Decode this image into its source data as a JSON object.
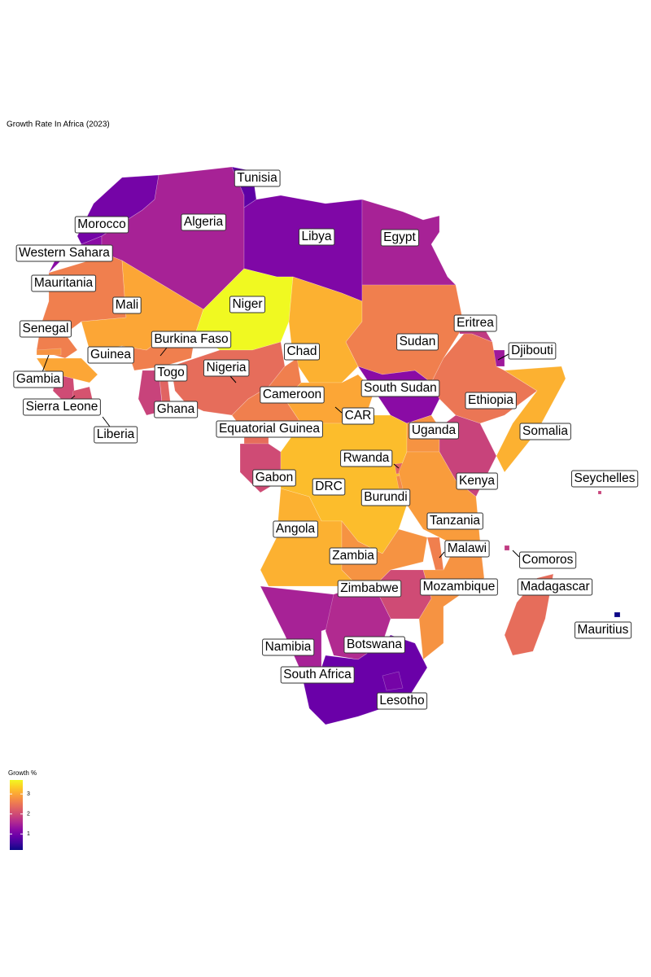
{
  "chart_data": {
    "type": "choropleth",
    "title": "Growth Rate In Africa (2023)",
    "legend_title": "Growth %",
    "scale_lim": [
      0.2,
      3.7
    ],
    "scale_ticks": [
      1,
      2,
      3
    ],
    "countries": [
      {
        "name": "Morocco",
        "growth": 1.0
      },
      {
        "name": "Western Sahara",
        "growth": 1.2
      },
      {
        "name": "Algeria",
        "growth": 1.5
      },
      {
        "name": "Tunisia",
        "growth": 0.8
      },
      {
        "name": "Libya",
        "growth": 1.1
      },
      {
        "name": "Egypt",
        "growth": 1.5
      },
      {
        "name": "Mauritania",
        "growth": 2.6
      },
      {
        "name": "Mali",
        "growth": 3.0
      },
      {
        "name": "Niger",
        "growth": 3.7
      },
      {
        "name": "Chad",
        "growth": 3.1
      },
      {
        "name": "Sudan",
        "growth": 2.6
      },
      {
        "name": "Eritrea",
        "growth": 1.8
      },
      {
        "name": "Djibouti",
        "growth": 1.4
      },
      {
        "name": "Ethiopia",
        "growth": 2.5
      },
      {
        "name": "Somalia",
        "growth": 3.1
      },
      {
        "name": "Senegal",
        "growth": 2.6
      },
      {
        "name": "Gambia",
        "growth": 2.8
      },
      {
        "name": "Guinea",
        "growth": 3.0
      },
      {
        "name": "Sierra Leone",
        "growth": 2.0
      },
      {
        "name": "Liberia",
        "growth": 2.1
      },
      {
        "name": "Burkina Faso",
        "growth": 2.6
      },
      {
        "name": "Ghana",
        "growth": 1.9
      },
      {
        "name": "Togo",
        "growth": 2.3
      },
      {
        "name": "Nigeria",
        "growth": 2.4
      },
      {
        "name": "Cameroon",
        "growth": 2.6
      },
      {
        "name": "CAR",
        "growth": 3.0
      },
      {
        "name": "South Sudan",
        "growth": 1.2
      },
      {
        "name": "Equatorial Guinea",
        "growth": 2.4
      },
      {
        "name": "Gabon",
        "growth": 2.0
      },
      {
        "name": "DRC",
        "growth": 3.2
      },
      {
        "name": "Uganda",
        "growth": 2.8
      },
      {
        "name": "Kenya",
        "growth": 1.9
      },
      {
        "name": "Rwanda",
        "growth": 2.3
      },
      {
        "name": "Burundi",
        "growth": 2.7
      },
      {
        "name": "Tanzania",
        "growth": 2.9
      },
      {
        "name": "Angola",
        "growth": 3.1
      },
      {
        "name": "Zambia",
        "growth": 2.8
      },
      {
        "name": "Malawi",
        "growth": 2.6
      },
      {
        "name": "Mozambique",
        "growth": 2.8
      },
      {
        "name": "Zimbabwe",
        "growth": 2.0
      },
      {
        "name": "Namibia",
        "growth": 1.5
      },
      {
        "name": "Botswana",
        "growth": 1.6
      },
      {
        "name": "South Africa",
        "growth": 0.9
      },
      {
        "name": "Lesotho",
        "growth": 1.0
      },
      {
        "name": "Madagascar",
        "growth": 2.4
      },
      {
        "name": "Comoros",
        "growth": 1.8
      },
      {
        "name": "Seychelles",
        "growth": 1.9
      },
      {
        "name": "Mauritius",
        "growth": 0.2
      }
    ]
  }
}
